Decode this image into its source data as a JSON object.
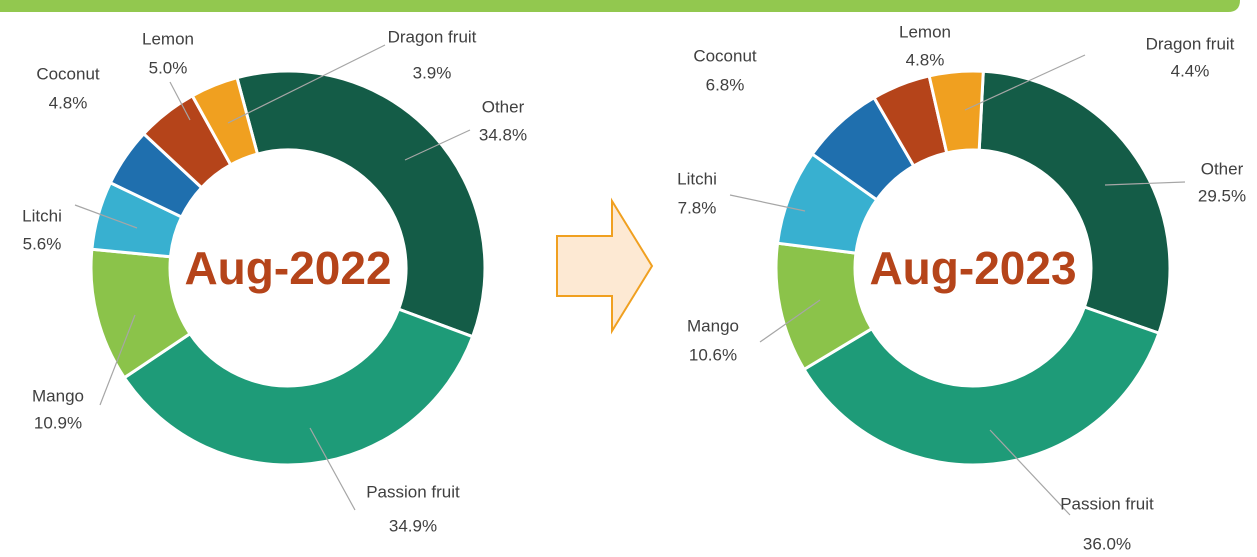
{
  "chart_data": [
    {
      "type": "donut",
      "center_label": "Aug-2022",
      "categories": [
        "Other",
        "Passion fruit",
        "Mango",
        "Litchi",
        "Coconut",
        "Lemon",
        "Dragon fruit"
      ],
      "values": [
        34.8,
        34.9,
        10.9,
        5.6,
        4.8,
        5.0,
        3.9
      ],
      "value_labels": [
        "34.8%",
        "34.9%",
        "10.9%",
        "5.6%",
        "4.8%",
        "5.0%",
        "3.9%"
      ],
      "colors": [
        "#145c47",
        "#1e9b78",
        "#8bc34a",
        "#38b0d0",
        "#1f6fae",
        "#b5441a",
        "#f0a020"
      ]
    },
    {
      "type": "donut",
      "center_label": "Aug-2023",
      "categories": [
        "Other",
        "Passion fruit",
        "Mango",
        "Litchi",
        "Coconut",
        "Lemon",
        "Dragon fruit"
      ],
      "values": [
        29.5,
        36.0,
        10.6,
        7.8,
        6.8,
        4.8,
        4.4
      ],
      "value_labels": [
        "29.5%",
        "36.0%",
        "10.6%",
        "7.8%",
        "6.8%",
        "4.8%",
        "4.4%"
      ],
      "colors": [
        "#145c47",
        "#1e9b78",
        "#8bc34a",
        "#38b0d0",
        "#1f6fae",
        "#b5441a",
        "#f0a020"
      ]
    }
  ]
}
